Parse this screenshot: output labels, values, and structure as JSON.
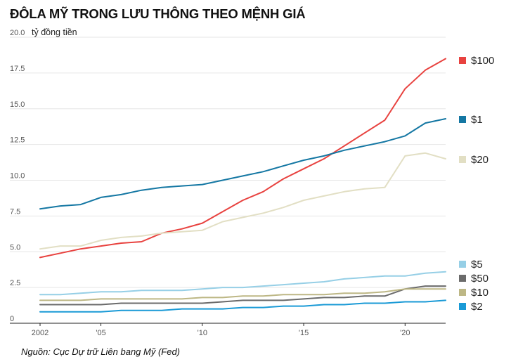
{
  "chart_data": {
    "type": "line",
    "title": "ĐÔLA MỸ TRONG LƯU THÔNG THEO MỆNH GIÁ",
    "unit_label": "tỷ đồng tiền",
    "source": "Nguồn: Cục Dự trữ Liên bang Mỹ (Fed)",
    "x": [
      2002,
      2003,
      2004,
      2005,
      2006,
      2007,
      2008,
      2009,
      2010,
      2011,
      2012,
      2013,
      2014,
      2015,
      2016,
      2017,
      2018,
      2019,
      2020,
      2021,
      2022
    ],
    "xlim": [
      2002,
      2022
    ],
    "ylim": [
      0,
      20
    ],
    "x_ticks": [
      {
        "value": 2002,
        "label": "2002"
      },
      {
        "value": 2005,
        "label": "'05"
      },
      {
        "value": 2010,
        "label": "'10"
      },
      {
        "value": 2015,
        "label": "'15"
      },
      {
        "value": 2020,
        "label": "'20"
      }
    ],
    "y_ticks": [
      {
        "value": 0,
        "label": "0"
      },
      {
        "value": 2.5,
        "label": "2.5"
      },
      {
        "value": 5,
        "label": "5.0"
      },
      {
        "value": 7.5,
        "label": "7.5"
      },
      {
        "value": 10,
        "label": "10.0"
      },
      {
        "value": 12.5,
        "label": "12.5"
      },
      {
        "value": 15,
        "label": "15.0"
      },
      {
        "value": 17.5,
        "label": "17.5"
      },
      {
        "value": 20,
        "label": "20.0"
      }
    ],
    "grid": true,
    "legend": "right",
    "series": [
      {
        "name": "$100",
        "color": "#e8423f",
        "values": [
          4.6,
          4.9,
          5.2,
          5.4,
          5.6,
          5.7,
          6.3,
          6.6,
          7.0,
          7.8,
          8.6,
          9.2,
          10.1,
          10.8,
          11.5,
          12.4,
          13.3,
          14.2,
          16.4,
          17.7,
          18.5
        ]
      },
      {
        "name": "$1",
        "color": "#1477a3",
        "values": [
          8.0,
          8.2,
          8.3,
          8.8,
          9.0,
          9.3,
          9.5,
          9.6,
          9.7,
          10.0,
          10.3,
          10.6,
          11.0,
          11.4,
          11.7,
          12.1,
          12.4,
          12.7,
          13.1,
          14.0,
          14.3
        ]
      },
      {
        "name": "$20",
        "color": "#e2dfc4",
        "values": [
          5.2,
          5.4,
          5.4,
          5.8,
          6.0,
          6.1,
          6.3,
          6.4,
          6.5,
          7.1,
          7.4,
          7.7,
          8.1,
          8.6,
          8.9,
          9.2,
          9.4,
          9.5,
          11.7,
          11.9,
          11.5
        ]
      },
      {
        "name": "$5",
        "color": "#96cfe6",
        "values": [
          2.0,
          2.0,
          2.1,
          2.2,
          2.2,
          2.3,
          2.3,
          2.3,
          2.4,
          2.5,
          2.5,
          2.6,
          2.7,
          2.8,
          2.9,
          3.1,
          3.2,
          3.3,
          3.3,
          3.5,
          3.6
        ]
      },
      {
        "name": "$50",
        "color": "#6b6b6b",
        "values": [
          1.3,
          1.3,
          1.3,
          1.3,
          1.4,
          1.4,
          1.4,
          1.4,
          1.4,
          1.5,
          1.6,
          1.6,
          1.6,
          1.7,
          1.8,
          1.8,
          1.9,
          1.9,
          2.4,
          2.6,
          2.6
        ]
      },
      {
        "name": "$10",
        "color": "#bdb785",
        "values": [
          1.6,
          1.6,
          1.6,
          1.7,
          1.7,
          1.7,
          1.7,
          1.7,
          1.8,
          1.8,
          1.9,
          1.9,
          2.0,
          2.0,
          2.0,
          2.1,
          2.1,
          2.2,
          2.4,
          2.4,
          2.4
        ]
      },
      {
        "name": "$2",
        "color": "#1a9ad6",
        "values": [
          0.8,
          0.8,
          0.8,
          0.8,
          0.9,
          0.9,
          0.9,
          1.0,
          1.0,
          1.0,
          1.1,
          1.1,
          1.2,
          1.2,
          1.3,
          1.3,
          1.4,
          1.4,
          1.5,
          1.5,
          1.6
        ]
      }
    ]
  }
}
